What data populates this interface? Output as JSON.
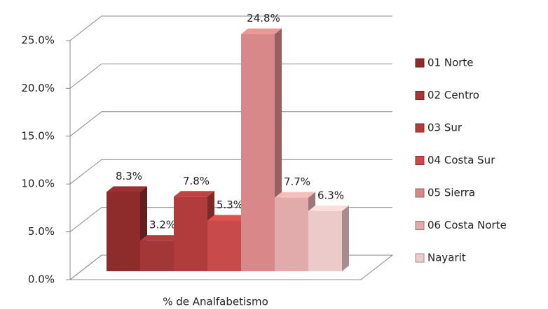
{
  "chart_data": {
    "type": "bar3d",
    "categories": [
      "% de Analfabetismo"
    ],
    "series": [
      {
        "name": "01 Norte",
        "color": "#8e2b2b",
        "values": [
          8.3
        ],
        "value_labels": [
          "8.3%"
        ]
      },
      {
        "name": "02 Centro",
        "color": "#a33737",
        "values": [
          3.2
        ],
        "value_labels": [
          "3.2%"
        ]
      },
      {
        "name": "03 Sur",
        "color": "#b23b3b",
        "values": [
          7.8
        ],
        "value_labels": [
          "7.8%"
        ]
      },
      {
        "name": "04 Costa Sur",
        "color": "#c94a4a",
        "values": [
          5.3
        ],
        "value_labels": [
          "5.3%"
        ]
      },
      {
        "name": "05 Sierra",
        "color": "#d88888",
        "values": [
          24.8
        ],
        "value_labels": [
          "24.8%"
        ]
      },
      {
        "name": "06 Costa Norte",
        "color": "#e2abab",
        "values": [
          7.7
        ],
        "value_labels": [
          "7.7%"
        ]
      },
      {
        "name": "Nayarit",
        "color": "#edcaca",
        "values": [
          6.3
        ],
        "value_labels": [
          "6.3%"
        ]
      }
    ],
    "ylim": [
      0,
      25
    ],
    "yticks": [
      {
        "value": 0,
        "label": "0.0%"
      },
      {
        "value": 5,
        "label": "5.0%"
      },
      {
        "value": 10,
        "label": "10.0%"
      },
      {
        "value": 15,
        "label": "15.0%"
      },
      {
        "value": 20,
        "label": "20.0%"
      },
      {
        "value": 25,
        "label": "25.0%"
      }
    ],
    "grid": true
  }
}
